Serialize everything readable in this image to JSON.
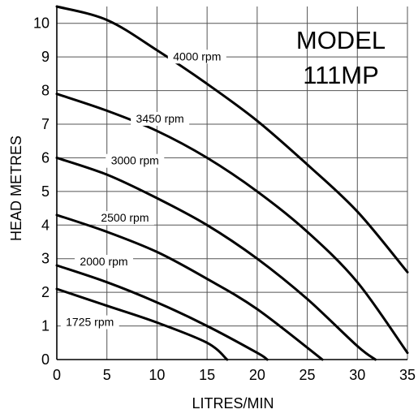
{
  "chart_data": {
    "type": "line",
    "title": [
      "MODEL",
      "111MP"
    ],
    "xlabel": "LITRES/MIN",
    "ylabel": "HEAD METRES",
    "xlim": [
      0,
      35
    ],
    "ylim": [
      0,
      10.5
    ],
    "x_ticks": [
      "0",
      "5",
      "10",
      "15",
      "20",
      "25",
      "30",
      "35"
    ],
    "y_ticks": [
      "0",
      "1",
      "2",
      "3",
      "4",
      "5",
      "6",
      "7",
      "8",
      "9",
      "10"
    ],
    "grid": true,
    "series": [
      {
        "name": "4000 rpm",
        "x": [
          0,
          5,
          10,
          15,
          20,
          25,
          30,
          35
        ],
        "y": [
          10.5,
          10.1,
          9.2,
          8.2,
          7.1,
          5.8,
          4.4,
          2.6
        ]
      },
      {
        "name": "3450 rpm",
        "x": [
          0,
          5,
          10,
          15,
          20,
          25,
          30,
          35
        ],
        "y": [
          7.9,
          7.4,
          6.8,
          6.0,
          5.0,
          3.8,
          2.3,
          0.2
        ]
      },
      {
        "name": "3000 rpm",
        "x": [
          0,
          5,
          10,
          15,
          20,
          25,
          30,
          31.8
        ],
        "y": [
          6.0,
          5.5,
          4.8,
          4.0,
          3.0,
          1.8,
          0.4,
          0.0
        ]
      },
      {
        "name": "2500 rpm",
        "x": [
          0,
          5,
          10,
          15,
          20,
          26.5
        ],
        "y": [
          4.3,
          3.8,
          3.2,
          2.4,
          1.5,
          0.0
        ]
      },
      {
        "name": "2000 rpm",
        "x": [
          0,
          5,
          10,
          15,
          20,
          21
        ],
        "y": [
          2.8,
          2.3,
          1.7,
          1.0,
          0.2,
          0.0
        ]
      },
      {
        "name": "1725 rpm",
        "x": [
          0,
          5,
          10,
          15,
          17
        ],
        "y": [
          2.1,
          1.6,
          1.1,
          0.5,
          0.0
        ]
      }
    ]
  }
}
